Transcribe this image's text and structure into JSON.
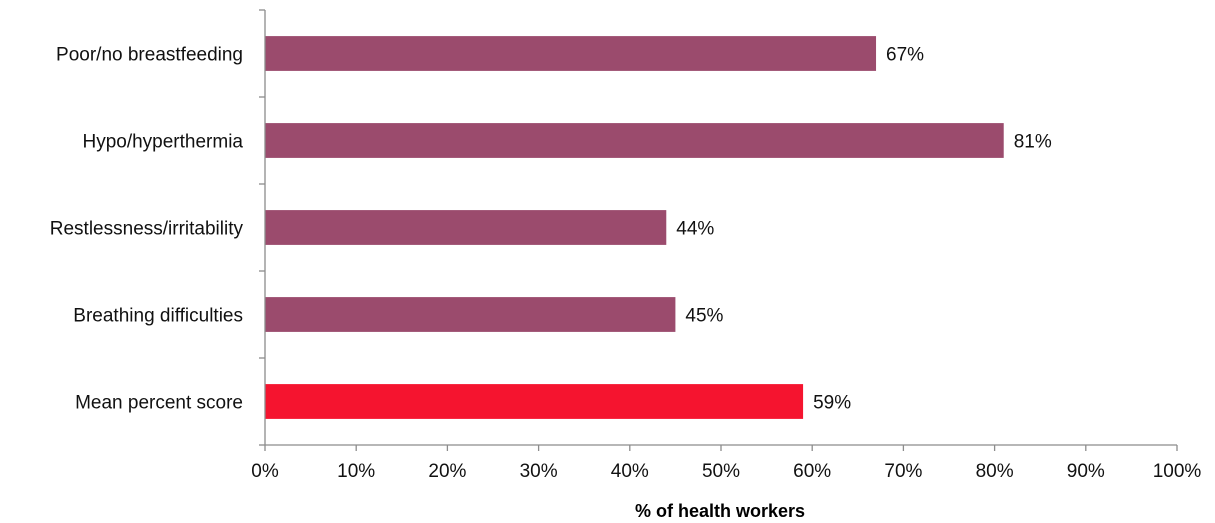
{
  "chart_data": {
    "type": "bar",
    "orientation": "horizontal",
    "categories": [
      "Poor/no breastfeeding",
      "Hypo/hyperthermia",
      "Restlessness/irritability",
      "Breathing difficulties",
      "Mean percent score"
    ],
    "values": [
      67,
      81,
      44,
      45,
      59
    ],
    "data_labels": [
      "67%",
      "81%",
      "44%",
      "45%",
      "59%"
    ],
    "bar_colors": [
      "#9b4b6d",
      "#9b4b6d",
      "#9b4b6d",
      "#9b4b6d",
      "#f5142f"
    ],
    "title": "",
    "xlabel": "% of health workers",
    "ylabel": "",
    "xlim": [
      0,
      100
    ],
    "x_ticks": [
      "0%",
      "10%",
      "20%",
      "30%",
      "40%",
      "50%",
      "60%",
      "70%",
      "80%",
      "90%",
      "100%"
    ],
    "grid": false,
    "legend": "none"
  }
}
